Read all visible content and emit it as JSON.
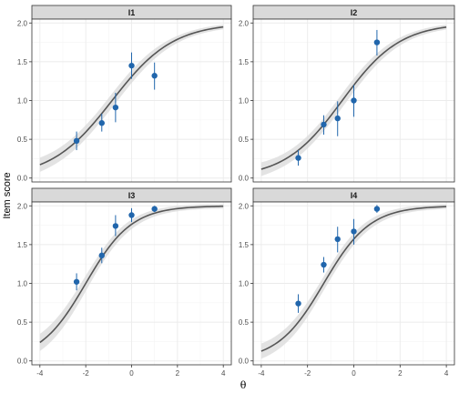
{
  "chart_data": {
    "type": "scatter",
    "xlabel": "θ",
    "ylabel": "Item score",
    "xlim": [
      -4.35,
      4.35
    ],
    "ylim": [
      -0.05,
      2.05
    ],
    "x_ticks": [
      "-4",
      "-2",
      "0",
      "2",
      "4"
    ],
    "y_ticks": [
      "0.0",
      "0.5",
      "1.0",
      "1.5",
      "2.0"
    ],
    "grid": true,
    "colors": {
      "points": "#2166ac",
      "curve": "#555555",
      "band": "#d9d9d9",
      "strip_fill": "#d9d9d9",
      "strip_border": "#333333",
      "grid_major": "#ebebeb",
      "panel_border": "#333333"
    },
    "panels": [
      {
        "title": "I1",
        "curve": {
          "a": 0.75,
          "b": -0.85
        },
        "points": [
          {
            "x": -2.4,
            "y": 0.48,
            "lo": 0.36,
            "hi": 0.6
          },
          {
            "x": -1.3,
            "y": 0.71,
            "lo": 0.6,
            "hi": 0.83
          },
          {
            "x": -0.7,
            "y": 0.91,
            "lo": 0.72,
            "hi": 1.1
          },
          {
            "x": 0.0,
            "y": 1.45,
            "lo": 1.28,
            "hi": 1.62
          },
          {
            "x": 1.0,
            "y": 1.32,
            "lo": 1.14,
            "hi": 1.49
          }
        ]
      },
      {
        "title": "I2",
        "curve": {
          "a": 0.8,
          "b": -0.5
        },
        "points": [
          {
            "x": -2.4,
            "y": 0.26,
            "lo": 0.16,
            "hi": 0.36
          },
          {
            "x": -1.3,
            "y": 0.69,
            "lo": 0.56,
            "hi": 0.81
          },
          {
            "x": -0.7,
            "y": 0.77,
            "lo": 0.54,
            "hi": 0.99
          },
          {
            "x": 0.0,
            "y": 1.0,
            "lo": 0.79,
            "hi": 1.2
          },
          {
            "x": 1.0,
            "y": 1.75,
            "lo": 1.58,
            "hi": 1.91
          }
        ]
      },
      {
        "title": "I3",
        "curve": {
          "a": 1.0,
          "b": -2.0
        },
        "points": [
          {
            "x": -2.4,
            "y": 1.02,
            "lo": 0.91,
            "hi": 1.13
          },
          {
            "x": -1.3,
            "y": 1.36,
            "lo": 1.26,
            "hi": 1.46
          },
          {
            "x": -0.7,
            "y": 1.74,
            "lo": 1.61,
            "hi": 1.88
          },
          {
            "x": 0.0,
            "y": 1.88,
            "lo": 1.79,
            "hi": 1.97
          },
          {
            "x": 1.0,
            "y": 1.96,
            "lo": 1.92,
            "hi": 2.0
          }
        ]
      },
      {
        "title": "I4",
        "curve": {
          "a": 1.0,
          "b": -1.3
        },
        "points": [
          {
            "x": -2.4,
            "y": 0.74,
            "lo": 0.62,
            "hi": 0.86
          },
          {
            "x": -1.3,
            "y": 1.24,
            "lo": 1.14,
            "hi": 1.34
          },
          {
            "x": -0.7,
            "y": 1.57,
            "lo": 1.4,
            "hi": 1.73
          },
          {
            "x": 0.0,
            "y": 1.67,
            "lo": 1.5,
            "hi": 1.83
          },
          {
            "x": 1.0,
            "y": 1.96,
            "lo": 1.91,
            "hi": 2.01
          }
        ]
      }
    ]
  }
}
